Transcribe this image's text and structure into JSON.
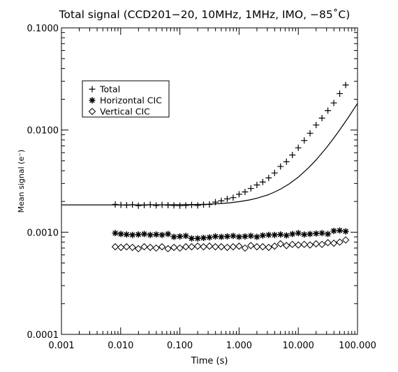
{
  "chart_data": {
    "type": "scatter",
    "title": "Total signal (CCD201−20, 10MHz, 1MHz, IMO, −85˚C)",
    "xlabel": "Time (s)",
    "ylabel": "Mean signal (e⁻)",
    "xscale": "log",
    "yscale": "log",
    "xlim": [
      0.001,
      100.0
    ],
    "ylim": [
      0.0001,
      0.1
    ],
    "x_tick_labels": [
      "0.001",
      "0.010",
      "0.100",
      "1.000",
      "10.000",
      "100.000"
    ],
    "y_tick_labels": [
      "0.0001",
      "0.0010",
      "0.0100",
      "0.1000"
    ],
    "grid": false,
    "legend_position": "upper-left",
    "series": [
      {
        "name": "Total",
        "marker": "plus",
        "color": "#000000",
        "x": [
          0.0081,
          0.0101,
          0.0126,
          0.0158,
          0.0199,
          0.025,
          0.0316,
          0.0398,
          0.05,
          0.0631,
          0.0794,
          0.1,
          0.126,
          0.158,
          0.2,
          0.251,
          0.316,
          0.398,
          0.501,
          0.631,
          0.794,
          1.0,
          1.26,
          1.58,
          2.0,
          2.51,
          3.16,
          3.98,
          5.01,
          6.31,
          7.94,
          10.0,
          12.6,
          15.8,
          20.0,
          25.1,
          31.6,
          39.8,
          50.1,
          63.1
        ],
        "y": [
          0.00187,
          0.00185,
          0.00184,
          0.00186,
          0.00182,
          0.00184,
          0.00186,
          0.00183,
          0.00185,
          0.00184,
          0.00183,
          0.00182,
          0.00183,
          0.00185,
          0.00183,
          0.00186,
          0.00187,
          0.00197,
          0.00203,
          0.00212,
          0.00218,
          0.00235,
          0.00248,
          0.00268,
          0.0029,
          0.0031,
          0.0034,
          0.0038,
          0.0044,
          0.0049,
          0.0057,
          0.0067,
          0.0079,
          0.0093,
          0.0112,
          0.0131,
          0.0155,
          0.0184,
          0.0227,
          0.0276
        ]
      },
      {
        "name": "Horizontal CIC",
        "marker": "asterisk",
        "color": "#000000",
        "x": [
          0.0081,
          0.0101,
          0.0126,
          0.0158,
          0.0199,
          0.025,
          0.0316,
          0.0398,
          0.05,
          0.0631,
          0.0794,
          0.1,
          0.126,
          0.158,
          0.2,
          0.251,
          0.316,
          0.398,
          0.501,
          0.631,
          0.794,
          1.0,
          1.26,
          1.58,
          2.0,
          2.51,
          3.16,
          3.98,
          5.01,
          6.31,
          7.94,
          10.0,
          12.6,
          15.8,
          20.0,
          25.1,
          31.6,
          39.8,
          50.1,
          63.1
        ],
        "y": [
          0.00098,
          0.00096,
          0.00095,
          0.00094,
          0.00095,
          0.00096,
          0.00094,
          0.00095,
          0.00094,
          0.00096,
          0.0009,
          0.00091,
          0.00092,
          0.00087,
          0.00087,
          0.00088,
          0.00089,
          0.00091,
          0.0009,
          0.00091,
          0.00092,
          0.0009,
          0.00091,
          0.00092,
          0.0009,
          0.00093,
          0.00094,
          0.00094,
          0.00095,
          0.00093,
          0.00096,
          0.00098,
          0.00095,
          0.00096,
          0.00097,
          0.00098,
          0.00096,
          0.00103,
          0.00104,
          0.00102
        ]
      },
      {
        "name": "Vertical CIC",
        "marker": "diamond",
        "color": "#000000",
        "x": [
          0.0081,
          0.0101,
          0.0126,
          0.0158,
          0.0199,
          0.025,
          0.0316,
          0.0398,
          0.05,
          0.0631,
          0.0794,
          0.1,
          0.126,
          0.158,
          0.2,
          0.251,
          0.316,
          0.398,
          0.501,
          0.631,
          0.794,
          1.0,
          1.26,
          1.58,
          2.0,
          2.51,
          3.16,
          3.98,
          5.01,
          6.31,
          7.94,
          10.0,
          12.6,
          15.8,
          20.0,
          25.1,
          31.6,
          39.8,
          50.1,
          63.1
        ],
        "y": [
          0.00072,
          0.00071,
          0.00072,
          0.00071,
          0.00069,
          0.00072,
          0.00071,
          0.0007,
          0.00072,
          0.00069,
          0.00071,
          0.0007,
          0.00072,
          0.00072,
          0.00073,
          0.00072,
          0.00073,
          0.00072,
          0.00072,
          0.00071,
          0.00072,
          0.00073,
          0.0007,
          0.00074,
          0.00072,
          0.00072,
          0.00071,
          0.00073,
          0.00077,
          0.00074,
          0.00076,
          0.00075,
          0.00076,
          0.00075,
          0.00077,
          0.00076,
          0.00079,
          0.00078,
          0.0008,
          0.00084
        ]
      }
    ],
    "fit_line": {
      "x": [
        0.001,
        0.003,
        0.01,
        0.03,
        0.1,
        0.2,
        0.3,
        0.5,
        0.7,
        1.0,
        1.5,
        2.0,
        3.0,
        4.0,
        5.0,
        7.0,
        10.0,
        15.0,
        20.0,
        30.0,
        40.0,
        50.0,
        70.0,
        100.0
      ],
      "y": [
        0.00185,
        0.00185,
        0.00185,
        0.00185,
        0.00186,
        0.00187,
        0.00188,
        0.00191,
        0.00194,
        0.00199,
        0.00207,
        0.00215,
        0.00231,
        0.00248,
        0.00264,
        0.00297,
        0.00346,
        0.00428,
        0.0051,
        0.00674,
        0.00838,
        0.01002,
        0.0133,
        0.0182
      ]
    }
  }
}
